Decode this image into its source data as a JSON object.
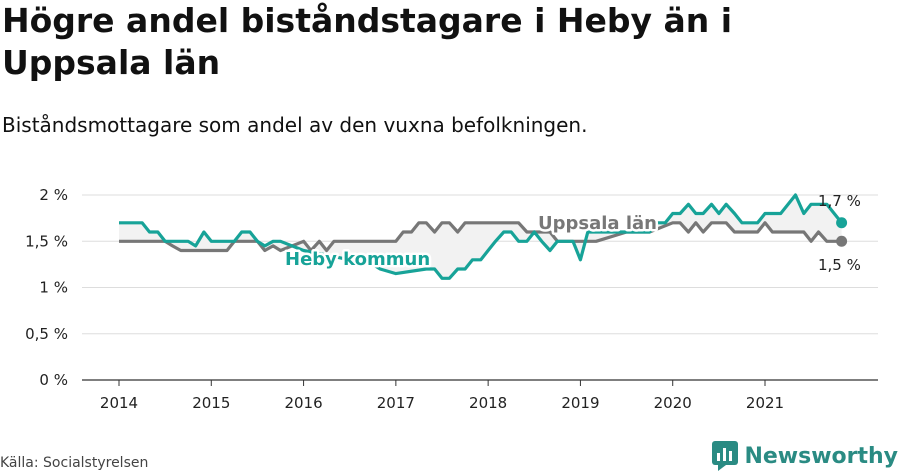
{
  "title": "Högre andel biståndstagare i Heby än i Uppsala län",
  "subtitle": "Biståndsmottagare som andel av den vuxna befolkningen.",
  "source": "Källa: Socialstyrelsen",
  "brand": "Newsworthy",
  "colors": {
    "heby": "#17a398",
    "uppsala": "#777777",
    "fill": "#f2f2f2",
    "brand": "#2a8b83"
  },
  "chart_data": {
    "type": "line",
    "title": "",
    "xlabel": "",
    "ylabel": "",
    "ylim": [
      0,
      2
    ],
    "y_ticks": [
      0,
      0.5,
      1,
      1.5,
      2
    ],
    "y_tick_labels": [
      "0 %",
      "0,5 %",
      "1 %",
      "1,5 %",
      "2 %"
    ],
    "x_ticks": [
      2014,
      2015,
      2016,
      2017,
      2018,
      2019,
      2020,
      2021
    ],
    "x_tick_labels": [
      "2014",
      "2015",
      "2016",
      "2017",
      "2018",
      "2019",
      "2020",
      "2021"
    ],
    "xlim": [
      2013.6,
      2022.25
    ],
    "series": [
      {
        "name": "Heby kommun",
        "end_label": "1,7 %",
        "x": [
          2014.0,
          2014.25,
          2014.33,
          2014.42,
          2014.5,
          2014.75,
          2014.83,
          2014.92,
          2015.0,
          2015.25,
          2015.33,
          2015.42,
          2015.5,
          2015.58,
          2015.67,
          2015.75,
          2016.0,
          2016.25,
          2016.5,
          2016.75,
          2016.83,
          2017.0,
          2017.33,
          2017.42,
          2017.5,
          2017.58,
          2017.67,
          2017.75,
          2017.83,
          2017.92,
          2018.0,
          2018.08,
          2018.17,
          2018.25,
          2018.33,
          2018.42,
          2018.5,
          2018.58,
          2018.67,
          2018.75,
          2018.83,
          2018.92,
          2019.0,
          2019.08,
          2019.17,
          2019.25,
          2019.5,
          2019.75,
          2019.83,
          2019.92,
          2020.0,
          2020.08,
          2020.17,
          2020.25,
          2020.33,
          2020.42,
          2020.5,
          2020.58,
          2020.67,
          2020.75,
          2020.83,
          2020.92,
          2021.0,
          2021.08,
          2021.17,
          2021.25,
          2021.33,
          2021.42,
          2021.5,
          2021.58,
          2021.67,
          2021.75,
          2021.83
        ],
        "values": [
          1.7,
          1.7,
          1.6,
          1.6,
          1.5,
          1.5,
          1.45,
          1.6,
          1.5,
          1.5,
          1.6,
          1.6,
          1.5,
          1.45,
          1.5,
          1.5,
          1.4,
          1.35,
          1.3,
          1.25,
          1.2,
          1.15,
          1.2,
          1.2,
          1.1,
          1.1,
          1.2,
          1.2,
          1.3,
          1.3,
          1.4,
          1.5,
          1.6,
          1.6,
          1.5,
          1.5,
          1.6,
          1.5,
          1.4,
          1.5,
          1.5,
          1.5,
          1.3,
          1.6,
          1.6,
          1.6,
          1.6,
          1.6,
          1.7,
          1.7,
          1.8,
          1.8,
          1.9,
          1.8,
          1.8,
          1.9,
          1.8,
          1.9,
          1.8,
          1.7,
          1.7,
          1.7,
          1.8,
          1.8,
          1.8,
          1.9,
          2.0,
          1.8,
          1.9,
          1.9,
          1.9,
          1.8,
          1.7
        ]
      },
      {
        "name": "Uppsala län",
        "end_label": "1,5 %",
        "x": [
          2014.0,
          2014.5,
          2014.58,
          2014.67,
          2015.17,
          2015.25,
          2015.5,
          2015.58,
          2015.67,
          2015.75,
          2016.0,
          2016.08,
          2016.17,
          2016.25,
          2016.33,
          2016.42,
          2016.5,
          2016.75,
          2017.0,
          2017.08,
          2017.17,
          2017.25,
          2017.33,
          2017.42,
          2017.5,
          2017.58,
          2017.67,
          2017.75,
          2017.83,
          2018.0,
          2018.25,
          2018.33,
          2018.42,
          2018.5,
          2018.67,
          2018.75,
          2019.0,
          2019.17,
          2019.5,
          2019.75,
          2020.0,
          2020.08,
          2020.17,
          2020.25,
          2020.33,
          2020.42,
          2020.5,
          2020.58,
          2020.67,
          2020.75,
          2020.83,
          2020.92,
          2021.0,
          2021.08,
          2021.17,
          2021.25,
          2021.33,
          2021.42,
          2021.5,
          2021.58,
          2021.67,
          2021.75,
          2021.83
        ],
        "values": [
          1.5,
          1.5,
          1.45,
          1.4,
          1.4,
          1.5,
          1.5,
          1.4,
          1.45,
          1.4,
          1.5,
          1.4,
          1.5,
          1.4,
          1.5,
          1.5,
          1.5,
          1.5,
          1.5,
          1.6,
          1.6,
          1.7,
          1.7,
          1.6,
          1.7,
          1.7,
          1.6,
          1.7,
          1.7,
          1.7,
          1.7,
          1.7,
          1.6,
          1.6,
          1.6,
          1.5,
          1.5,
          1.5,
          1.6,
          1.6,
          1.7,
          1.7,
          1.6,
          1.7,
          1.6,
          1.7,
          1.7,
          1.7,
          1.6,
          1.6,
          1.6,
          1.6,
          1.7,
          1.6,
          1.6,
          1.6,
          1.6,
          1.6,
          1.5,
          1.6,
          1.5,
          1.5,
          1.5
        ]
      }
    ],
    "annotations": [
      {
        "text": "Heby kommun",
        "series": "Heby kommun"
      },
      {
        "text": "Uppsala län",
        "series": "Uppsala län"
      }
    ]
  }
}
